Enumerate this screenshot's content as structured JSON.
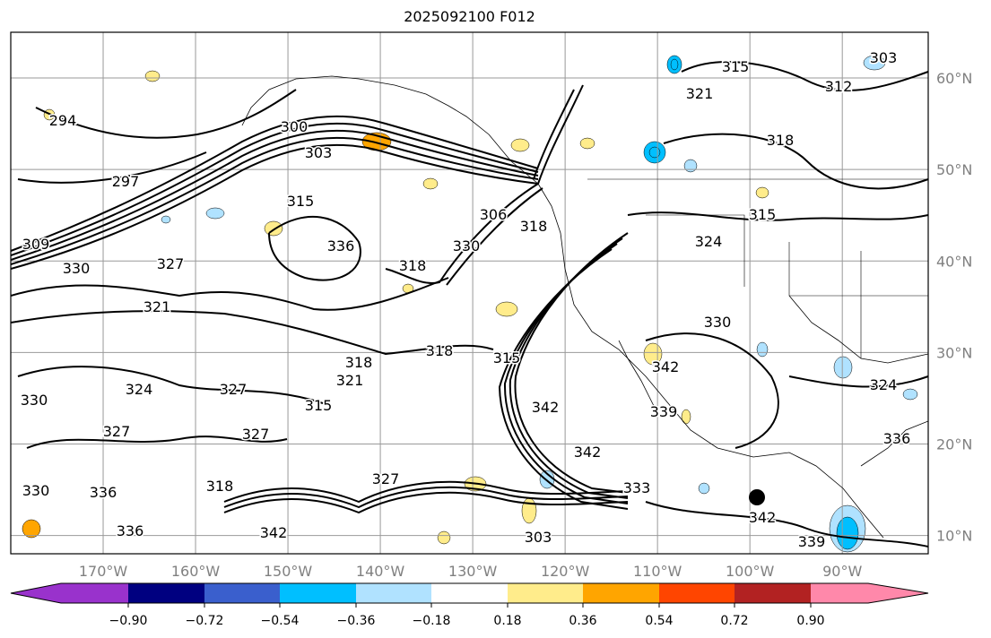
{
  "title": "2025092100 F012",
  "map": {
    "lon_labels": [
      "170°W",
      "160°W",
      "150°W",
      "140°W",
      "130°W",
      "120°W",
      "110°W",
      "100°W",
      "90°W"
    ],
    "lon_values": [
      -170,
      -160,
      -150,
      -140,
      -130,
      -120,
      -110,
      -100,
      -90
    ],
    "lat_labels": [
      "60°N",
      "50°N",
      "40°N",
      "30°N",
      "20°N",
      "10°N"
    ],
    "lat_values": [
      60,
      50,
      40,
      30,
      20,
      10
    ],
    "extent": {
      "lon_min": -180,
      "lon_max": -80.7,
      "lat_min": 8,
      "lat_max": 65
    },
    "contour_labels": [
      "294",
      "297",
      "300",
      "303",
      "309",
      "330",
      "327",
      "321",
      "324",
      "330",
      "327",
      "327",
      "318",
      "330",
      "336",
      "342",
      "336",
      "315",
      "318",
      "321",
      "315",
      "327",
      "318",
      "315",
      "330",
      "342",
      "342",
      "339",
      "342",
      "333",
      "342",
      "339",
      "324",
      "336",
      "315",
      "321",
      "318",
      "306",
      "312",
      "303",
      "315",
      "324",
      "318",
      "330",
      "336",
      "318",
      "327",
      "303"
    ],
    "marker": "tropical-cyclone-position"
  },
  "colorbar": {
    "ticks": [
      "−0.90",
      "−0.72",
      "−0.54",
      "−0.36",
      "−0.18",
      "0.18",
      "0.36",
      "0.54",
      "0.72",
      "0.90"
    ],
    "colors": [
      "#9932CC",
      "#000080",
      "#3A5FCD",
      "#00BFFF",
      "#B0E2FF",
      "#FFFFFF",
      "#FFEC8B",
      "#FFA500",
      "#FF4500",
      "#B22222",
      "#FF88AA"
    ]
  }
}
